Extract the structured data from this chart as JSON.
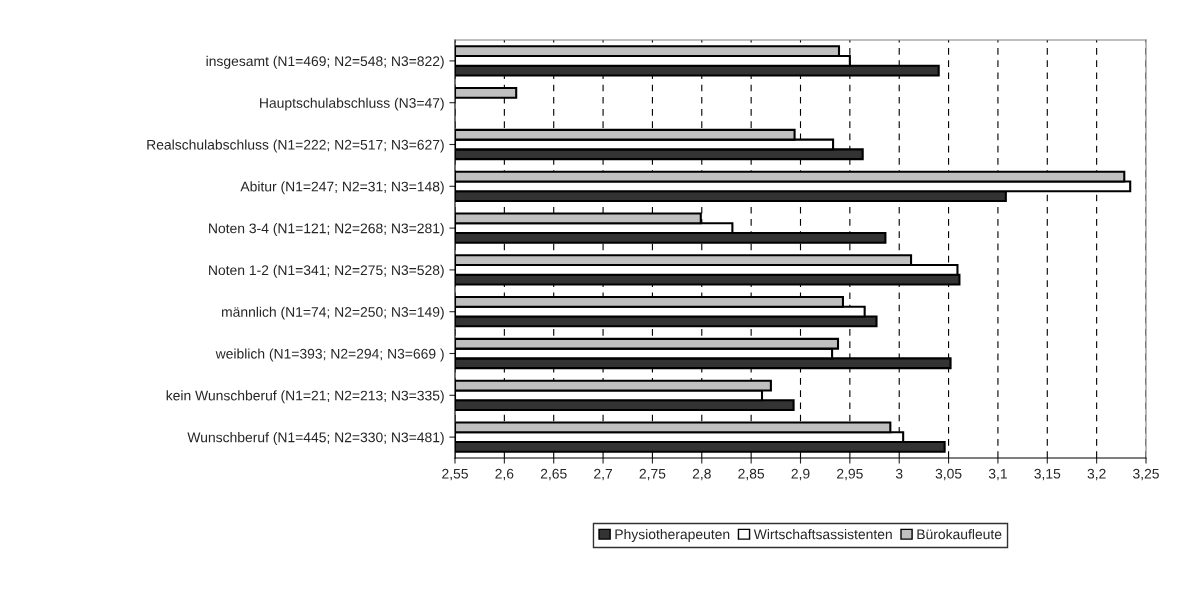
{
  "chart_data": {
    "type": "bar",
    "orientation": "horizontal",
    "categories": [
      "insgesamt (N1=469; N2=548; N3=822)",
      "Hauptschulabschluss (N3=47)",
      "Realschulabschluss (N1=222; N2=517; N3=627)",
      "Abitur (N1=247; N2=31; N3=148)",
      "Noten 3-4 (N1=121; N2=268; N3=281)",
      "Noten 1-2 (N1=341; N2=275; N3=528)",
      "männlich (N1=74; N2=250; N3=149)",
      "weiblich (N1=393; N2=294; N3=669 )",
      "kein Wunschberuf (N1=21; N2=213; N3=335)",
      "Wunschberuf (N1=445; N2=330; N3=481)"
    ],
    "series": [
      {
        "name": "Physiotherapeuten",
        "color": "#333333",
        "values": [
          3.04,
          null,
          2.963,
          3.108,
          2.986,
          3.061,
          2.977,
          3.052,
          2.893,
          3.046
        ]
      },
      {
        "name": "Wirtschaftsassistenten",
        "color": "#ffffff",
        "values": [
          2.95,
          null,
          2.933,
          3.234,
          2.831,
          3.059,
          2.965,
          2.932,
          2.861,
          3.004
        ]
      },
      {
        "name": "Bürokaufleute",
        "color": "#c0c0c0",
        "values": [
          2.939,
          2.612,
          2.894,
          3.228,
          2.799,
          3.012,
          2.943,
          2.938,
          2.87,
          2.991
        ]
      }
    ],
    "xlim": [
      2.55,
      3.25
    ],
    "xticks": [
      {
        "value": 2.55,
        "label": "2,55"
      },
      {
        "value": 2.6,
        "label": "2,6"
      },
      {
        "value": 2.65,
        "label": "2,65"
      },
      {
        "value": 2.7,
        "label": "2,7"
      },
      {
        "value": 2.75,
        "label": "2,75"
      },
      {
        "value": 2.8,
        "label": "2,8"
      },
      {
        "value": 2.85,
        "label": "2,85"
      },
      {
        "value": 2.9,
        "label": "2,9"
      },
      {
        "value": 2.95,
        "label": "2,95"
      },
      {
        "value": 3.0,
        "label": "3"
      },
      {
        "value": 3.05,
        "label": "3,05"
      },
      {
        "value": 3.1,
        "label": "3,1"
      },
      {
        "value": 3.15,
        "label": "3,15"
      },
      {
        "value": 3.2,
        "label": "3,2"
      },
      {
        "value": 3.25,
        "label": "3,25"
      }
    ],
    "grid": "x",
    "legend": "bottom"
  }
}
